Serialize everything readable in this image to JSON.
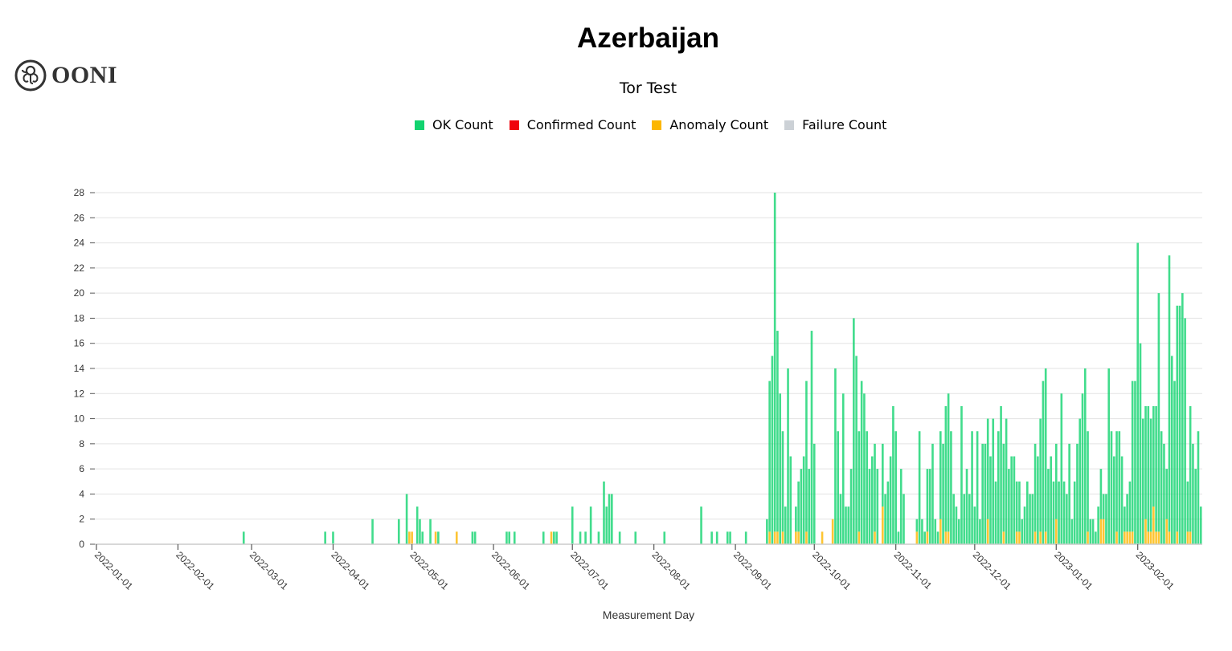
{
  "header": {
    "title": "Azerbaijan",
    "subtitle": "Tor Test",
    "logo_text": "OONI"
  },
  "legend": [
    {
      "label": "OK Count",
      "color": "#12d36f"
    },
    {
      "label": "Confirmed Count",
      "color": "#f0020c"
    },
    {
      "label": "Anomaly Count",
      "color": "#fcb600"
    },
    {
      "label": "Failure Count",
      "color": "#ccd1d6"
    }
  ],
  "chart_data": {
    "type": "bar",
    "stacked": true,
    "title": "Azerbaijan",
    "subtitle": "Tor Test",
    "xlabel": "Measurement Day",
    "ylabel": "",
    "ylim": [
      0,
      28
    ],
    "yticks": [
      0,
      2,
      4,
      6,
      8,
      10,
      12,
      14,
      16,
      18,
      20,
      22,
      24,
      26,
      28
    ],
    "xticks": [
      "2022-01-01",
      "2022-02-01",
      "2022-03-01",
      "2022-04-01",
      "2022-05-01",
      "2022-06-01",
      "2022-07-01",
      "2022-08-01",
      "2022-09-01",
      "2022-10-01",
      "2022-11-01",
      "2022-12-01",
      "2023-01-01",
      "2023-02-01"
    ],
    "grid": "horizontal",
    "legend_position": "top",
    "x": [
      "2022-02-26",
      "2022-03-29",
      "2022-04-01",
      "2022-04-16",
      "2022-04-26",
      "2022-04-29",
      "2022-04-30",
      "2022-05-01",
      "2022-05-03",
      "2022-05-04",
      "2022-05-05",
      "2022-05-08",
      "2022-05-10",
      "2022-05-11",
      "2022-05-18",
      "2022-05-24",
      "2022-05-25",
      "2022-06-06",
      "2022-06-07",
      "2022-06-09",
      "2022-06-20",
      "2022-06-23",
      "2022-06-24",
      "2022-06-25",
      "2022-07-01",
      "2022-07-04",
      "2022-07-06",
      "2022-07-08",
      "2022-07-11",
      "2022-07-13",
      "2022-07-14",
      "2022-07-15",
      "2022-07-16",
      "2022-07-19",
      "2022-07-25",
      "2022-08-05",
      "2022-08-19",
      "2022-08-23",
      "2022-08-25",
      "2022-08-29",
      "2022-08-30",
      "2022-09-05",
      "2022-09-13",
      "2022-09-14",
      "2022-09-15",
      "2022-09-16",
      "2022-09-17",
      "2022-09-18",
      "2022-09-19",
      "2022-09-20",
      "2022-09-21",
      "2022-09-22",
      "2022-09-24",
      "2022-09-25",
      "2022-09-26",
      "2022-09-27",
      "2022-09-28",
      "2022-09-29",
      "2022-09-30",
      "2022-10-01",
      "2022-10-04",
      "2022-10-08",
      "2022-10-09",
      "2022-10-10",
      "2022-10-11",
      "2022-10-12",
      "2022-10-13",
      "2022-10-14",
      "2022-10-15",
      "2022-10-16",
      "2022-10-17",
      "2022-10-18",
      "2022-10-19",
      "2022-10-20",
      "2022-10-21",
      "2022-10-22",
      "2022-10-23",
      "2022-10-24",
      "2022-10-25",
      "2022-10-27",
      "2022-10-28",
      "2022-10-29",
      "2022-10-30",
      "2022-10-31",
      "2022-11-01",
      "2022-11-02",
      "2022-11-03",
      "2022-11-04",
      "2022-11-09",
      "2022-11-10",
      "2022-11-11",
      "2022-11-12",
      "2022-11-13",
      "2022-11-14",
      "2022-11-15",
      "2022-11-16",
      "2022-11-17",
      "2022-11-18",
      "2022-11-19",
      "2022-11-20",
      "2022-11-21",
      "2022-11-22",
      "2022-11-23",
      "2022-11-24",
      "2022-11-25",
      "2022-11-26",
      "2022-11-27",
      "2022-11-28",
      "2022-11-29",
      "2022-11-30",
      "2022-12-01",
      "2022-12-02",
      "2022-12-03",
      "2022-12-04",
      "2022-12-05",
      "2022-12-06",
      "2022-12-07",
      "2022-12-08",
      "2022-12-09",
      "2022-12-10",
      "2022-12-11",
      "2022-12-12",
      "2022-12-13",
      "2022-12-14",
      "2022-12-15",
      "2022-12-16",
      "2022-12-17",
      "2022-12-18",
      "2022-12-19",
      "2022-12-20",
      "2022-12-21",
      "2022-12-22",
      "2022-12-23",
      "2022-12-24",
      "2022-12-25",
      "2022-12-26",
      "2022-12-27",
      "2022-12-28",
      "2022-12-29",
      "2022-12-30",
      "2022-12-31",
      "2023-01-01",
      "2023-01-02",
      "2023-01-03",
      "2023-01-04",
      "2023-01-05",
      "2023-01-06",
      "2023-01-07",
      "2023-01-08",
      "2023-01-09",
      "2023-01-10",
      "2023-01-11",
      "2023-01-12",
      "2023-01-13",
      "2023-01-14",
      "2023-01-15",
      "2023-01-16",
      "2023-01-17",
      "2023-01-18",
      "2023-01-19",
      "2023-01-20",
      "2023-01-21",
      "2023-01-22",
      "2023-01-23",
      "2023-01-24",
      "2023-01-25",
      "2023-01-26",
      "2023-01-27",
      "2023-01-28",
      "2023-01-29",
      "2023-01-30",
      "2023-01-31",
      "2023-02-01",
      "2023-02-02",
      "2023-02-03",
      "2023-02-04",
      "2023-02-05",
      "2023-02-06",
      "2023-02-07",
      "2023-02-08",
      "2023-02-09",
      "2023-02-10",
      "2023-02-11",
      "2023-02-12",
      "2023-02-13",
      "2023-02-14",
      "2023-02-15",
      "2023-02-16",
      "2023-02-17",
      "2023-02-18",
      "2023-02-19",
      "2023-02-20",
      "2023-02-21",
      "2023-02-22",
      "2023-02-23",
      "2023-02-24",
      "2023-02-25"
    ],
    "series": [
      {
        "name": "OK Count",
        "color": "#12d36f",
        "values": [
          1,
          1,
          1,
          2,
          2,
          4,
          0,
          0,
          3,
          2,
          1,
          2,
          0,
          1,
          0,
          1,
          1,
          1,
          1,
          1,
          1,
          0,
          1,
          1,
          3,
          1,
          1,
          3,
          1,
          5,
          3,
          4,
          4,
          1,
          1,
          1,
          3,
          1,
          1,
          1,
          1,
          1,
          2,
          12,
          15,
          27,
          16,
          12,
          8,
          3,
          14,
          7,
          2,
          4,
          6,
          7,
          12,
          6,
          17,
          8,
          0,
          0,
          14,
          9,
          4,
          12,
          3,
          3,
          6,
          18,
          15,
          8,
          13,
          12,
          9,
          6,
          7,
          7,
          6,
          5,
          4,
          5,
          7,
          11,
          9,
          1,
          6,
          4,
          1,
          9,
          2,
          1,
          5,
          6,
          8,
          2,
          1,
          7,
          8,
          10,
          11,
          9,
          4,
          3,
          2,
          11,
          4,
          6,
          4,
          9,
          3,
          9,
          2,
          8,
          8,
          8,
          7,
          10,
          5,
          9,
          11,
          7,
          10,
          6,
          7,
          7,
          4,
          4,
          2,
          3,
          5,
          4,
          4,
          7,
          7,
          9,
          13,
          13,
          6,
          7,
          5,
          6,
          5,
          12,
          5,
          4,
          8,
          2,
          5,
          8,
          10,
          12,
          14,
          8,
          2,
          2,
          1,
          3,
          4,
          2,
          4,
          14,
          9,
          7,
          8,
          9,
          7,
          2,
          3,
          4,
          12,
          13,
          24,
          16,
          10,
          9,
          10,
          9,
          8,
          10,
          19,
          9,
          8,
          4,
          22,
          15,
          13,
          18,
          19,
          20,
          18,
          4,
          10,
          8,
          6,
          9,
          3
        ]
      },
      {
        "name": "Confirmed Count",
        "color": "#f0020c"
      },
      {
        "name": "Anomaly Count",
        "color": "#fcb600",
        "values": [
          0,
          0,
          0,
          0,
          0,
          0,
          1,
          1,
          0,
          0,
          0,
          0,
          1,
          0,
          1,
          0,
          0,
          0,
          0,
          0,
          0,
          1,
          0,
          0,
          0,
          0,
          0,
          0,
          0,
          0,
          0,
          0,
          0,
          0,
          0,
          0,
          0,
          0,
          0,
          0,
          0,
          0,
          0,
          1,
          0,
          1,
          1,
          0,
          1,
          0,
          0,
          0,
          1,
          1,
          0,
          0,
          1,
          0,
          0,
          0,
          1,
          2,
          0,
          0,
          0,
          0,
          0,
          0,
          0,
          0,
          0,
          1,
          0,
          0,
          0,
          0,
          0,
          1,
          0,
          3,
          0,
          0,
          0,
          0,
          0,
          0,
          0,
          0,
          1,
          0,
          0,
          0,
          1,
          0,
          0,
          0,
          0,
          2,
          0,
          1,
          1,
          0,
          0,
          0,
          0,
          0,
          0,
          0,
          0,
          0,
          0,
          0,
          0,
          0,
          0,
          2,
          0,
          0,
          0,
          0,
          0,
          1,
          0,
          0,
          0,
          0,
          1,
          1,
          0,
          0,
          0,
          0,
          0,
          1,
          0,
          1,
          0,
          1,
          0,
          0,
          0,
          2,
          0,
          0,
          0,
          0,
          0,
          0,
          0,
          0,
          0,
          0,
          0,
          1,
          0,
          0,
          0,
          0,
          2,
          2,
          0,
          0,
          0,
          0,
          1,
          0,
          0,
          1,
          1,
          1,
          1,
          0,
          0,
          0,
          0,
          2,
          1,
          1,
          3,
          1,
          1,
          0,
          0,
          2,
          1,
          0,
          0,
          1,
          0,
          0,
          0,
          1,
          1,
          0,
          0,
          0,
          0
        ]
      },
      {
        "name": "Failure Count",
        "color": "#ccd1d6"
      }
    ]
  }
}
